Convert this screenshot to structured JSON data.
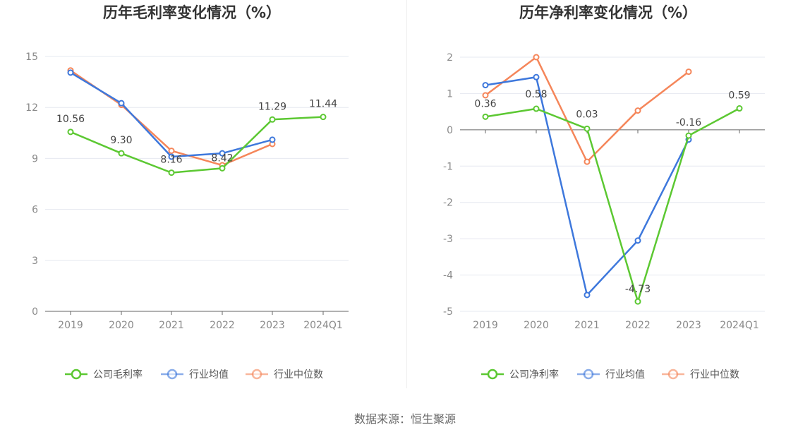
{
  "colors": {
    "company": "#5cc832",
    "average": "#3e78dc",
    "median": "#f5865a",
    "grid": "#e6e8f0",
    "axis": "#666666"
  },
  "source_text": "数据来源：恒生聚源",
  "chart_data": [
    {
      "type": "line",
      "title": "历年毛利率变化情况（%）",
      "categories": [
        "2019",
        "2020",
        "2021",
        "2022",
        "2023",
        "2024Q1"
      ],
      "ylim": [
        0,
        15
      ],
      "yticks": [
        0,
        3,
        6,
        9,
        12,
        15
      ],
      "grid": true,
      "legend_position": "bottom",
      "series": [
        {
          "name": "公司毛利率",
          "role": "company",
          "values": [
            10.56,
            9.3,
            8.16,
            8.42,
            11.29,
            11.44
          ],
          "labels": [
            "10.56",
            "9.30",
            "8.16",
            "8.42",
            "11.29",
            "11.44"
          ]
        },
        {
          "name": "行业均值",
          "role": "average",
          "values": [
            14.05,
            12.25,
            9.1,
            9.3,
            10.1,
            null
          ]
        },
        {
          "name": "行业中位数",
          "role": "median",
          "values": [
            14.18,
            12.15,
            9.45,
            8.6,
            9.85,
            null
          ]
        }
      ]
    },
    {
      "type": "line",
      "title": "历年净利率变化情况（%）",
      "categories": [
        "2019",
        "2020",
        "2021",
        "2022",
        "2023",
        "2024Q1"
      ],
      "ylim": [
        -5,
        2
      ],
      "yticks": [
        -5,
        -4,
        -3,
        -2,
        -1,
        0,
        1,
        2
      ],
      "grid": true,
      "legend_position": "bottom",
      "series": [
        {
          "name": "公司净利率",
          "role": "company",
          "values": [
            0.36,
            0.58,
            0.03,
            -4.73,
            -0.16,
            0.59
          ],
          "labels": [
            "0.36",
            "0.58",
            "0.03",
            "-4.73",
            "-0.16",
            "0.59"
          ]
        },
        {
          "name": "行业均值",
          "role": "average",
          "values": [
            1.23,
            1.45,
            -4.55,
            -3.05,
            -0.27,
            null
          ]
        },
        {
          "name": "行业中位数",
          "role": "median",
          "values": [
            0.95,
            2.0,
            -0.88,
            0.53,
            1.6,
            null
          ]
        }
      ]
    }
  ]
}
